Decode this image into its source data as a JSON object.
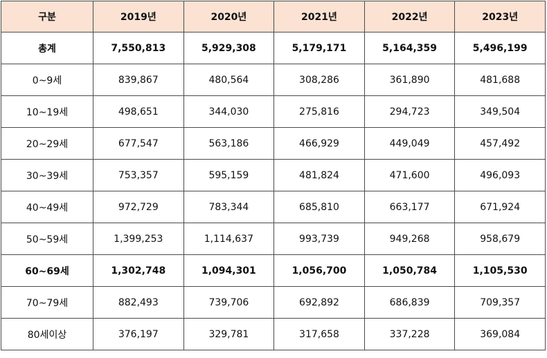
{
  "header": {
    "category": "구분",
    "years": [
      "2019년",
      "2020년",
      "2021년",
      "2022년",
      "2023년"
    ]
  },
  "rows": [
    {
      "label": "총계",
      "values": [
        "7,550,813",
        "5,929,308",
        "5,179,171",
        "5,164,359",
        "5,496,199"
      ],
      "bold": true
    },
    {
      "label": "0~9세",
      "values": [
        "839,867",
        "480,564",
        "308,286",
        "361,890",
        "481,688"
      ],
      "bold": false
    },
    {
      "label": "10~19세",
      "values": [
        "498,651",
        "344,030",
        "275,816",
        "294,723",
        "349,504"
      ],
      "bold": false
    },
    {
      "label": "20~29세",
      "values": [
        "677,547",
        "563,186",
        "466,929",
        "449,049",
        "457,492"
      ],
      "bold": false
    },
    {
      "label": "30~39세",
      "values": [
        "753,357",
        "595,159",
        "481,824",
        "471,600",
        "496,093"
      ],
      "bold": false
    },
    {
      "label": "40~49세",
      "values": [
        "972,729",
        "783,344",
        "685,810",
        "663,177",
        "671,924"
      ],
      "bold": false
    },
    {
      "label": "50~59세",
      "values": [
        "1,399,253",
        "1,114,637",
        "993,739",
        "949,268",
        "958,679"
      ],
      "bold": false
    },
    {
      "label": "60~69세",
      "values": [
        "1,302,748",
        "1,094,301",
        "1,056,700",
        "1,050,784",
        "1,105,530"
      ],
      "bold": true
    },
    {
      "label": "70~79세",
      "values": [
        "882,493",
        "739,706",
        "692,892",
        "686,839",
        "709,357"
      ],
      "bold": false
    },
    {
      "label": "80세이상",
      "values": [
        "376,197",
        "329,781",
        "317,658",
        "337,228",
        "369,084"
      ],
      "bold": false
    }
  ]
}
